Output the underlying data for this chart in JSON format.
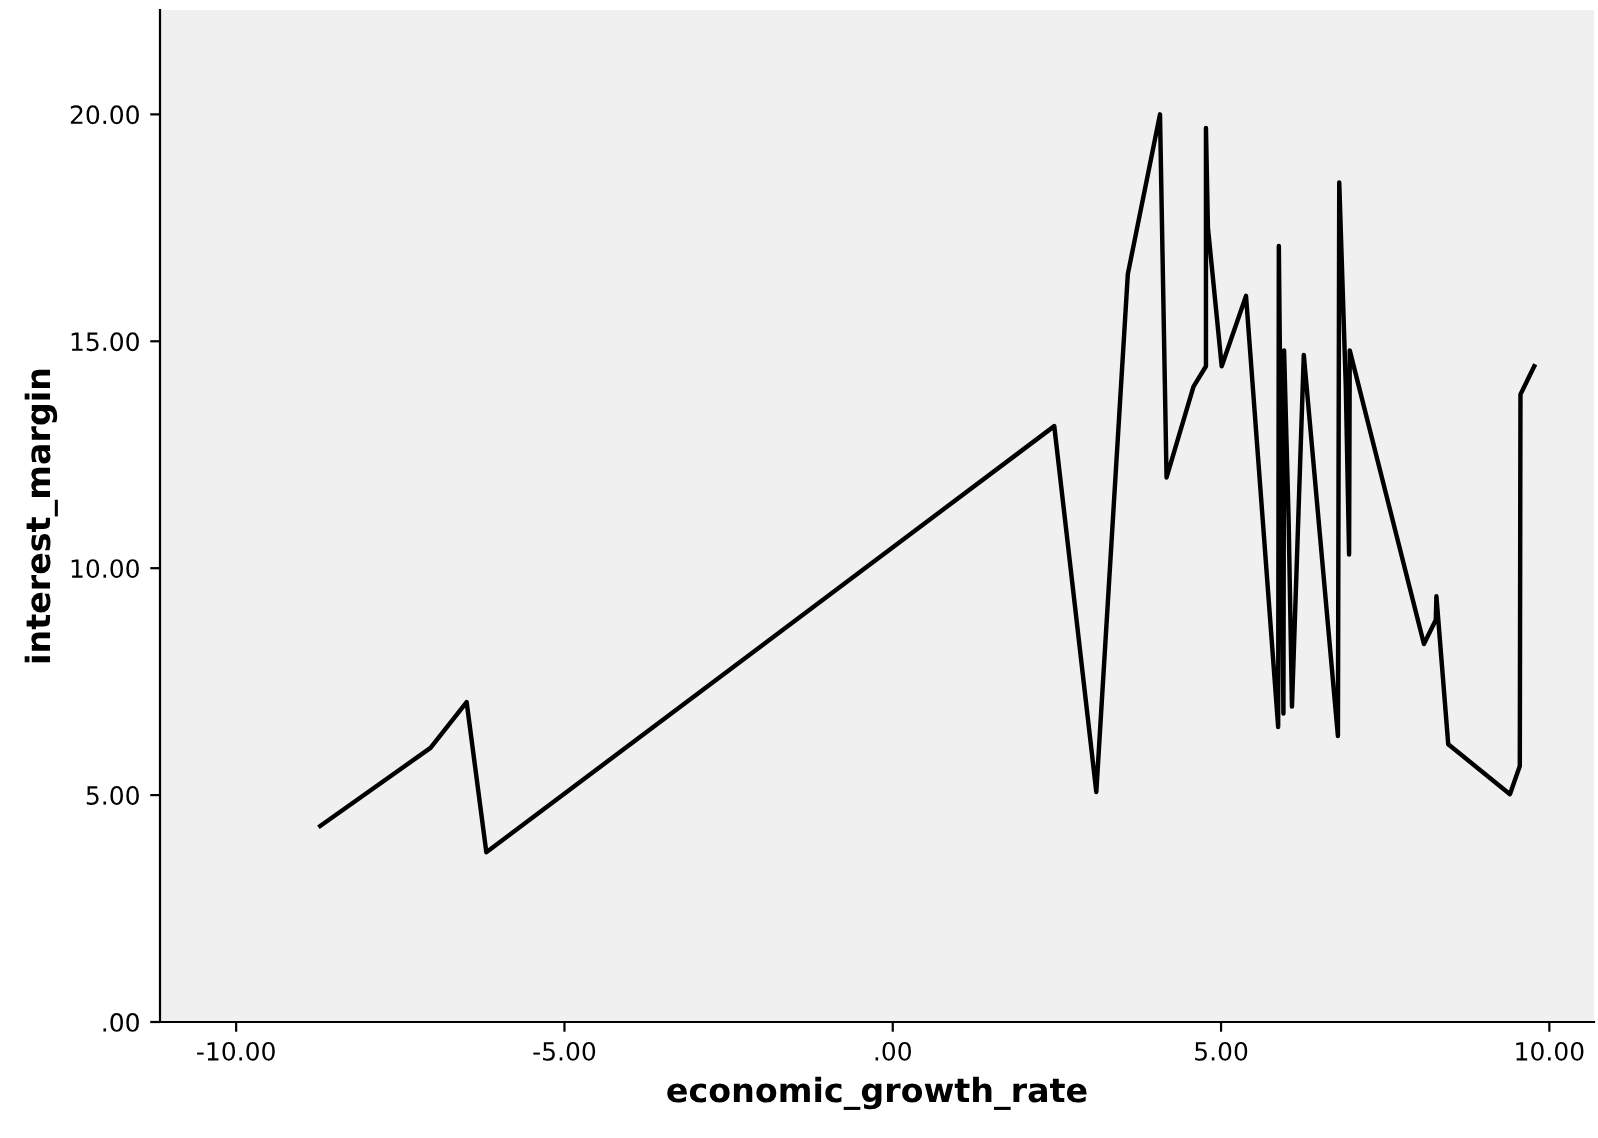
{
  "chart_data": {
    "type": "line",
    "xlabel": "economic_growth_rate",
    "ylabel": "interest_margin",
    "x": [
      -8.72,
      -7.04,
      -6.49,
      -6.19,
      2.46,
      3.1,
      3.58,
      4.07,
      4.17,
      4.58,
      4.77,
      4.77,
      4.8,
      5.01,
      5.38,
      5.87,
      5.88,
      5.95,
      5.96,
      6.03,
      6.08,
      6.26,
      6.78,
      6.8,
      6.9,
      6.95,
      6.96,
      8.09,
      8.27,
      8.28,
      8.46,
      9.4,
      9.55,
      9.56,
      9.77
    ],
    "series": [
      {
        "color": "#000000",
        "values": [
          4.32,
          6.04,
          7.05,
          3.74,
          13.13,
          5.07,
          16.48,
          20.0,
          12.0,
          14.0,
          14.45,
          19.7,
          17.5,
          14.45,
          16.0,
          6.5,
          17.1,
          6.8,
          14.8,
          11.0,
          6.95,
          14.7,
          6.3,
          18.5,
          14.0,
          10.3,
          14.8,
          8.33,
          8.86,
          9.38,
          6.12,
          5.02,
          5.64,
          13.83,
          14.45
        ]
      }
    ],
    "xlim": [
      -11.16,
      10.68
    ],
    "ylim": [
      0,
      22.3
    ],
    "xticks": [
      {
        "value": -10,
        "label": "-10.00"
      },
      {
        "value": -5,
        "label": "-5.00"
      },
      {
        "value": 0,
        "label": ".00"
      },
      {
        "value": 5,
        "label": "5.00"
      },
      {
        "value": 10,
        "label": "10.00"
      }
    ],
    "yticks": [
      {
        "value": 0,
        "label": ".00"
      },
      {
        "value": 5,
        "label": "5.00"
      },
      {
        "value": 10,
        "label": "10.00"
      },
      {
        "value": 15,
        "label": "15.00"
      },
      {
        "value": 20,
        "label": "20.00"
      }
    ],
    "grid": false,
    "marker": "none",
    "line_style": "solid"
  }
}
